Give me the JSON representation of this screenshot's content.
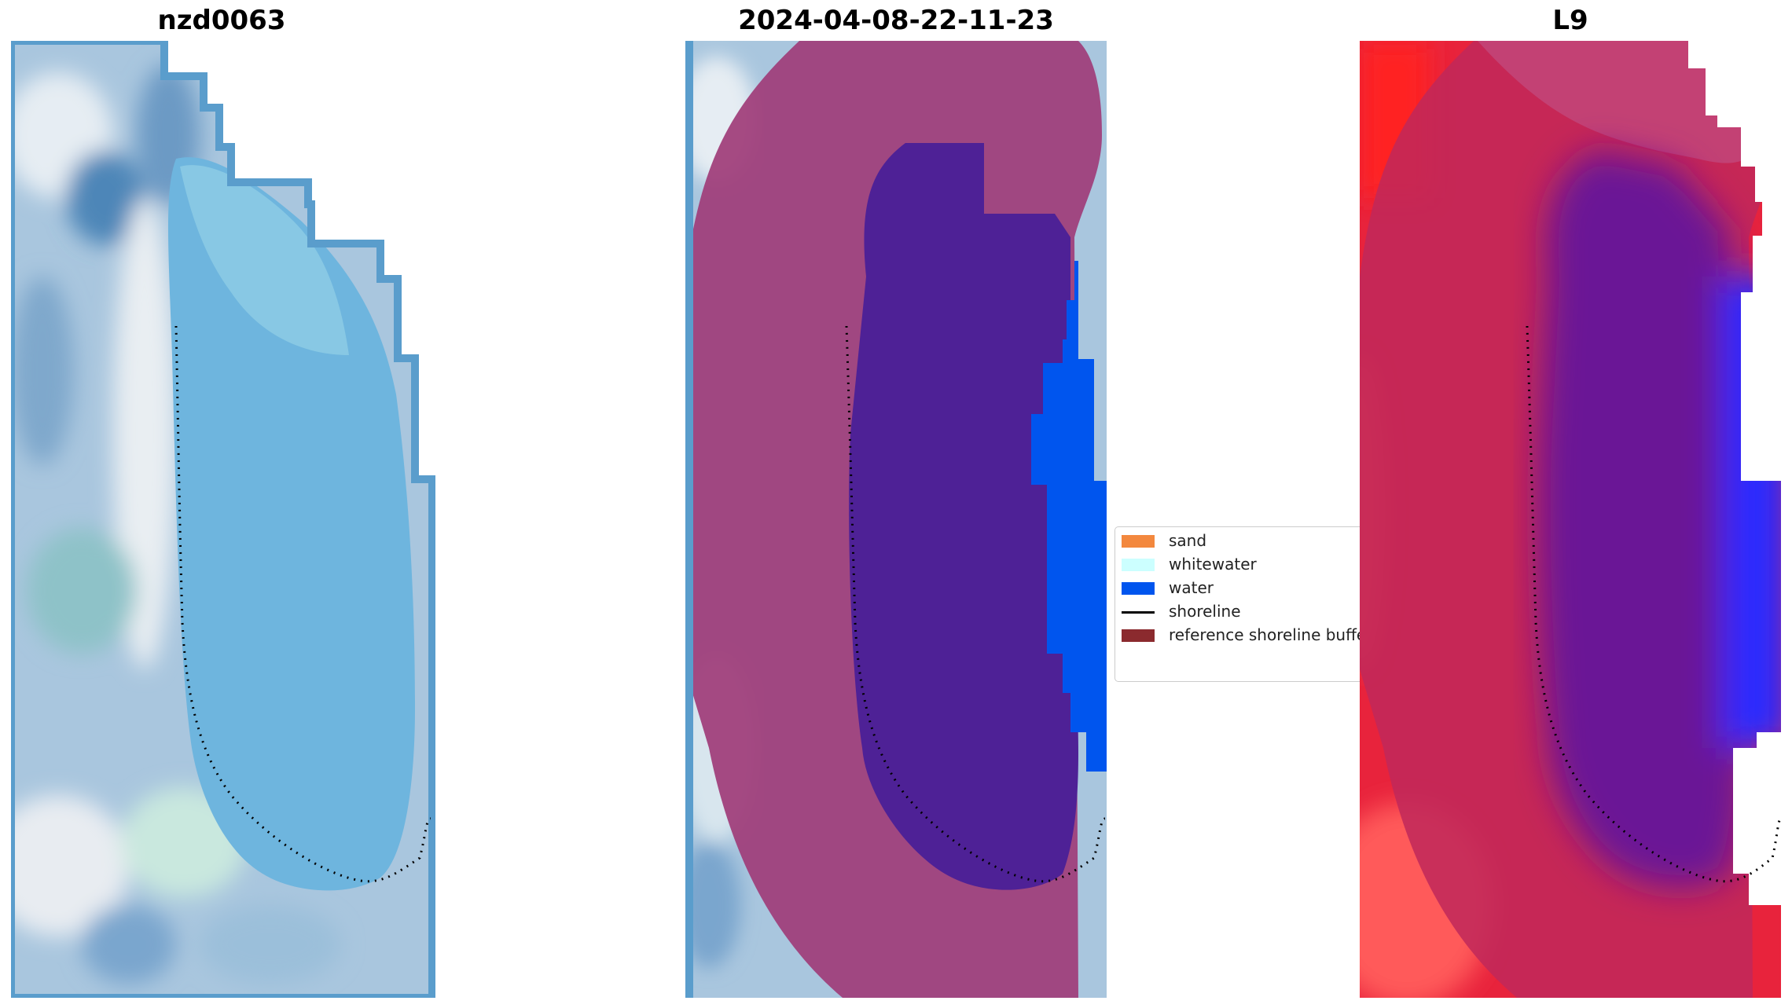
{
  "panels": [
    {
      "title": "nzd0063"
    },
    {
      "title": "2024-04-08-22-11-23"
    },
    {
      "title": "L9"
    }
  ],
  "legend": {
    "items": [
      {
        "label": "sand",
        "color": "#F3883E",
        "kind": "patch"
      },
      {
        "label": "whitewater",
        "color": "#CCFFFF",
        "kind": "patch"
      },
      {
        "label": "water",
        "color": "#0055EE",
        "kind": "patch"
      },
      {
        "label": "shoreline",
        "color": "#000000",
        "kind": "line"
      },
      {
        "label": "reference shoreline buffer",
        "color": "#8B2A2E",
        "kind": "patch"
      }
    ]
  },
  "colors": {
    "imagery_base": "#A9C6DE",
    "lake_rgb": "#6EB5DE",
    "border_blue": "#5A9DCC",
    "buffer_overlay": "#A03C78",
    "classified_water": "#0055EE",
    "lake_classified": "#4E2196",
    "index_red": "#E8233C",
    "index_bright_red": "#FF2A2A",
    "index_buffer": "#C0285A",
    "index_lake": "#6A1296",
    "index_blue": "#2A2AFF",
    "shoreline": "#000000"
  }
}
